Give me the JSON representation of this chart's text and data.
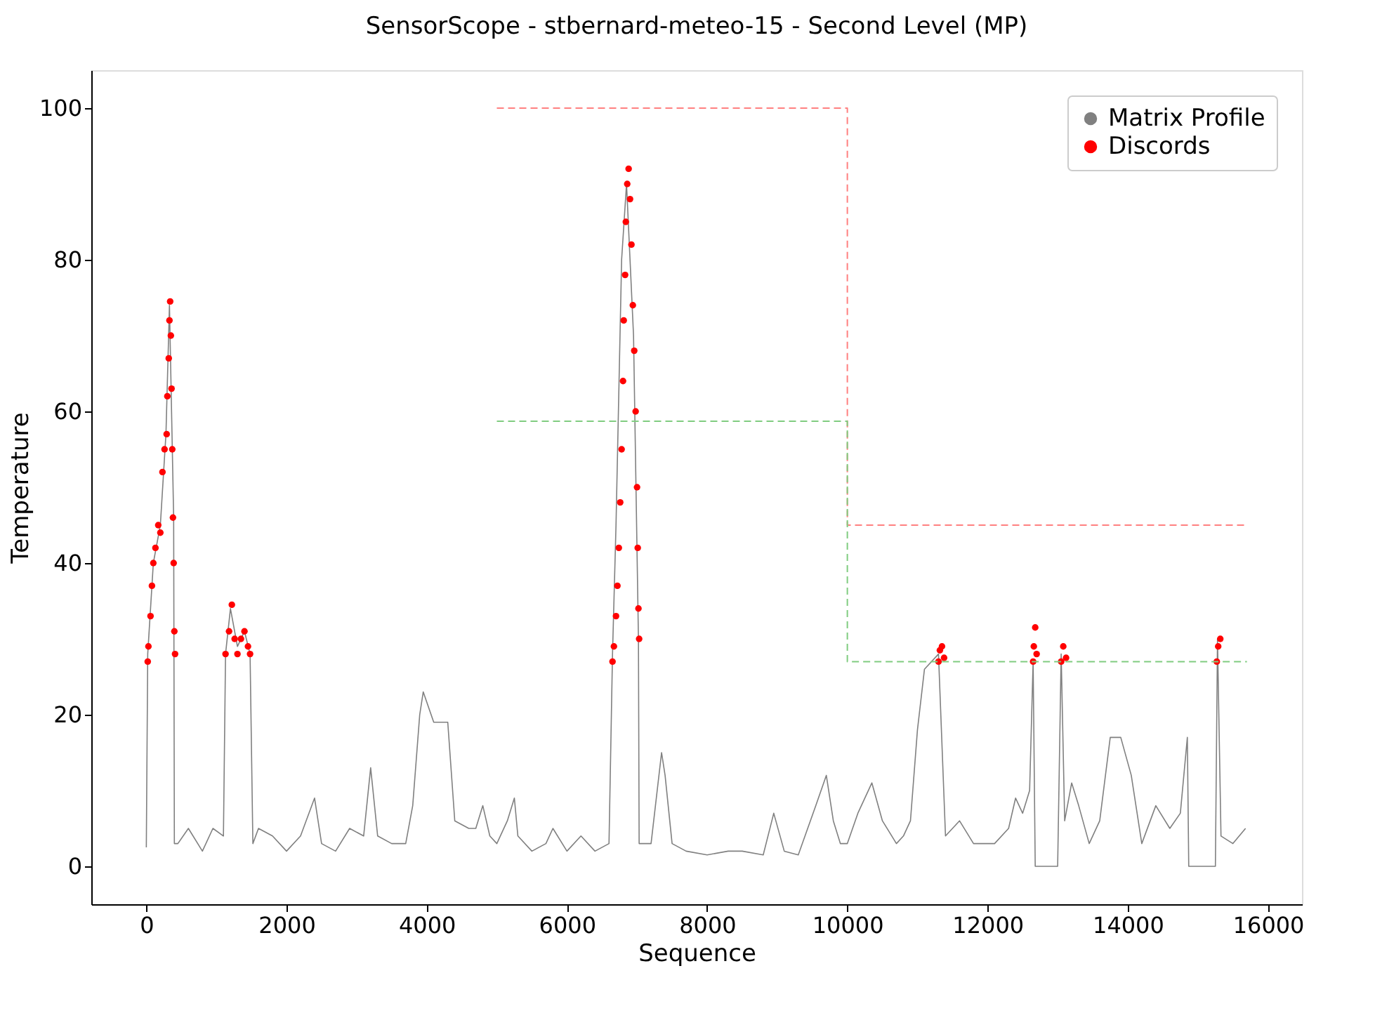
{
  "chart_data": {
    "type": "line",
    "title": "SensorScope - stbernard-meteo-15 - Second Level (MP)",
    "xlabel": "Sequence",
    "ylabel": "Temperature",
    "xlim": [
      -785,
      16485
    ],
    "ylim": [
      -5,
      105
    ],
    "xticks": [
      0,
      2000,
      4000,
      6000,
      8000,
      10000,
      12000,
      14000,
      16000
    ],
    "yticks": [
      0,
      20,
      40,
      60,
      80,
      100
    ],
    "grid": false,
    "legend": "top right",
    "series": [
      {
        "name": "Matrix Profile",
        "color": "#808080",
        "line_style": "solid",
        "x": [
          0,
          20,
          100,
          200,
          280,
          330,
          390,
          400,
          450,
          600,
          800,
          950,
          1100,
          1130,
          1200,
          1300,
          1400,
          1480,
          1520,
          1600,
          1800,
          2000,
          2200,
          2400,
          2500,
          2700,
          2900,
          3100,
          3200,
          3300,
          3500,
          3700,
          3800,
          3900,
          3950,
          4100,
          4300,
          4400,
          4600,
          4700,
          4800,
          4900,
          5000,
          5150,
          5250,
          5300,
          5500,
          5700,
          5800,
          6000,
          6200,
          6400,
          6600,
          6650,
          6700,
          6780,
          6850,
          6900,
          6950,
          7020,
          7030,
          7200,
          7350,
          7400,
          7500,
          7700,
          8000,
          8300,
          8500,
          8800,
          8950,
          9100,
          9300,
          9550,
          9700,
          9800,
          9900,
          10000,
          10150,
          10350,
          10500,
          10700,
          10800,
          10900,
          11000,
          11100,
          11300,
          11400,
          11600,
          11800,
          12100,
          12300,
          12400,
          12500,
          12600,
          12650,
          12680,
          13000,
          13050,
          13100,
          13200,
          13300,
          13450,
          13600,
          13750,
          13900,
          14050,
          14200,
          14400,
          14600,
          14750,
          14850,
          14870,
          15250,
          15280,
          15330,
          15500,
          15680
        ],
        "values": [
          2.5,
          28,
          40,
          45,
          57,
          74,
          46,
          3,
          3,
          5,
          2,
          5,
          4,
          28,
          34,
          29,
          31,
          28,
          3,
          5,
          4,
          2,
          4,
          9,
          3,
          2,
          5,
          4,
          13,
          4,
          3,
          3,
          8,
          20,
          23,
          19,
          19,
          6,
          5,
          5,
          8,
          4,
          3,
          6,
          9,
          4,
          2,
          3,
          5,
          2,
          4,
          2,
          3,
          28,
          45,
          80,
          90,
          80,
          70,
          30,
          3,
          3,
          15,
          12,
          3,
          2,
          1.5,
          2,
          2,
          1.5,
          7,
          2,
          1.5,
          8,
          12,
          6,
          3,
          3,
          7,
          11,
          6,
          3,
          4,
          6,
          18,
          26,
          28,
          4,
          6,
          3,
          3,
          5,
          9,
          7,
          10,
          27,
          0,
          0,
          28,
          6,
          11,
          8,
          3,
          6,
          17,
          17,
          12,
          3,
          8,
          5,
          7,
          17,
          0,
          0,
          30,
          4,
          3,
          5
        ]
      },
      {
        "name": "Discords",
        "type": "scatter",
        "color": "#ff0000",
        "marker": "circle",
        "x": [
          20,
          30,
          60,
          80,
          100,
          130,
          170,
          200,
          230,
          260,
          290,
          300,
          320,
          330,
          340,
          350,
          360,
          370,
          380,
          390,
          400,
          410,
          1130,
          1180,
          1220,
          1260,
          1300,
          1350,
          1400,
          1450,
          1480,
          6650,
          6670,
          6700,
          6720,
          6740,
          6760,
          6780,
          6800,
          6810,
          6830,
          6840,
          6860,
          6880,
          6900,
          6920,
          6940,
          6960,
          6980,
          7000,
          7010,
          7020,
          7030,
          11300,
          11320,
          11350,
          11380,
          12650,
          12660,
          12680,
          12700,
          13050,
          13080,
          13120,
          15270,
          15290,
          15320
        ],
        "values": [
          27,
          29,
          33,
          37,
          40,
          42,
          45,
          44,
          52,
          55,
          57,
          62,
          67,
          72,
          74.5,
          70,
          63,
          55,
          46,
          40,
          31,
          28,
          28,
          31,
          34.5,
          30,
          28,
          30,
          31,
          29,
          28,
          27,
          29,
          33,
          37,
          42,
          48,
          55,
          64,
          72,
          78,
          85,
          90,
          92,
          88,
          82,
          74,
          68,
          60,
          50,
          42,
          34,
          30,
          27,
          28.5,
          29,
          27.5,
          27,
          29,
          31.5,
          28,
          27,
          29,
          27.5,
          27,
          29,
          30
        ]
      },
      {
        "type": "line",
        "color": "#ff8080",
        "line_style": "dashed",
        "x": [
          5000,
          10000,
          10000,
          15700
        ],
        "values": [
          100,
          100,
          45,
          45
        ]
      },
      {
        "type": "line",
        "color": "#80cc80",
        "line_style": "dashed",
        "x": [
          5000,
          10000,
          10000,
          15700
        ],
        "values": [
          58.7,
          58.7,
          27,
          27
        ]
      }
    ]
  }
}
